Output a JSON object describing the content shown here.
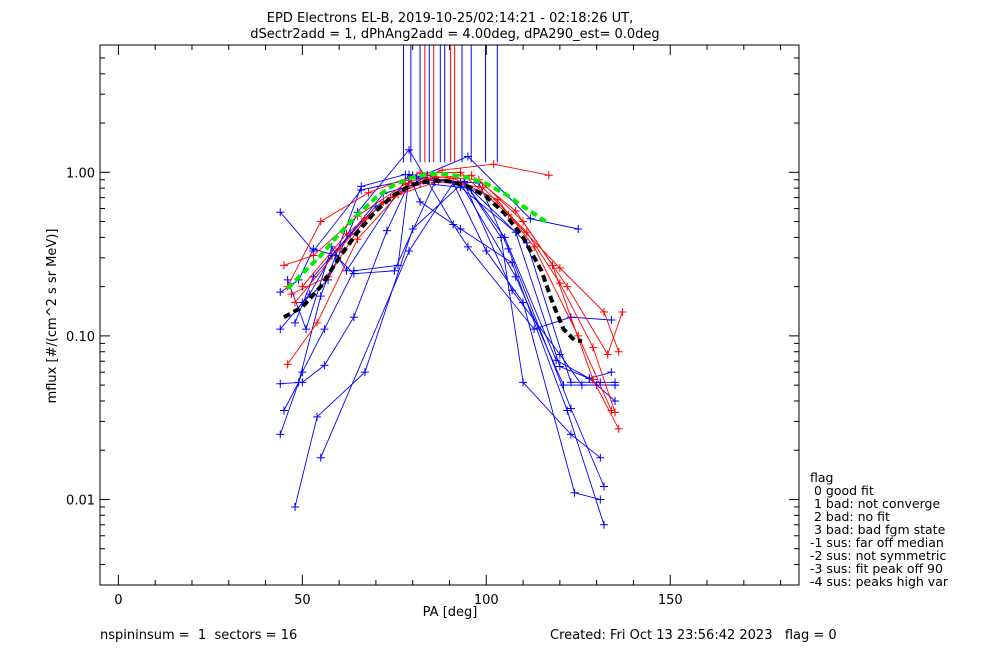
{
  "chart_data": {
    "type": "scatter",
    "title_line1": "EPD Electrons EL-B, 2019-10-25/02:14:21 - 02:18:26 UT,",
    "title_line2": "dSectr2add = 1, dPhAng2add = 4.00deg, dPA290_est=    0.0deg",
    "xlabel": "PA [deg]",
    "ylabel": "mflux [#/(cm^2 s sr MeV)]",
    "xlim": [
      -5,
      185
    ],
    "ylim": [
      0.003,
      6.0
    ],
    "y_scale": "log",
    "x_ticks": [
      0,
      50,
      100,
      150
    ],
    "x_tick_labels": [
      "0",
      "50",
      "100",
      "150"
    ],
    "y_ticks": [
      0.01,
      0.1,
      1.0
    ],
    "y_tick_labels": [
      "0.01",
      "0.10",
      "1.00"
    ],
    "colors": {
      "blue": "#0000ff",
      "red": "#ff0000",
      "green": "#00ee00",
      "black": "#000000"
    },
    "blue_series": [
      [
        [
          44,
          0.57
        ],
        [
          53,
          0.33
        ],
        [
          66,
          0.78
        ],
        [
          81,
          0.92
        ],
        [
          95,
          1.25
        ],
        [
          112,
          0.52
        ],
        [
          125,
          0.45
        ]
      ],
      [
        [
          44,
          0.11
        ],
        [
          52,
          0.18
        ],
        [
          58,
          0.31
        ],
        [
          70,
          0.62
        ],
        [
          84,
          0.96
        ],
        [
          96,
          0.78
        ],
        [
          111,
          0.37
        ],
        [
          123,
          0.052
        ],
        [
          131,
          0.052
        ],
        [
          135,
          0.052
        ]
      ],
      [
        [
          44,
          0.051
        ],
        [
          50,
          0.052
        ],
        [
          56,
          0.066
        ],
        [
          64,
          0.13
        ],
        [
          73,
          0.44
        ],
        [
          80,
          0.96
        ],
        [
          93,
          0.86
        ],
        [
          108,
          0.23
        ],
        [
          121,
          0.05
        ],
        [
          130,
          0.05
        ],
        [
          135,
          0.05
        ]
      ],
      [
        [
          45,
          0.035
        ],
        [
          49,
          0.052
        ],
        [
          55,
          0.175
        ],
        [
          66,
          0.82
        ],
        [
          78,
          0.97
        ],
        [
          94,
          0.86
        ],
        [
          107,
          0.19
        ],
        [
          120,
          0.077
        ],
        [
          126,
          0.05
        ],
        [
          135,
          0.05
        ]
      ],
      [
        [
          44,
          0.025
        ],
        [
          50,
          0.06
        ],
        [
          56,
          0.11
        ],
        [
          64,
          0.25
        ],
        [
          76,
          0.27
        ],
        [
          79,
          0.92
        ],
        [
          98,
          0.86
        ],
        [
          106,
          0.34
        ],
        [
          123,
          0.036
        ],
        [
          132,
          0.012
        ]
      ],
      [
        [
          48,
          0.009
        ],
        [
          54,
          0.032
        ],
        [
          67,
          0.06
        ],
        [
          80,
          0.45
        ],
        [
          94,
          0.88
        ],
        [
          104,
          0.4
        ],
        [
          110,
          0.052
        ],
        [
          123,
          0.025
        ],
        [
          131,
          0.018
        ]
      ],
      [
        [
          55,
          0.018
        ],
        [
          79,
          0.33
        ],
        [
          91,
          0.86
        ],
        [
          100,
          0.33
        ],
        [
          110,
          0.16
        ],
        [
          124,
          0.011
        ],
        [
          131,
          0.01
        ]
      ],
      [
        [
          46,
          0.22
        ],
        [
          51,
          0.11
        ],
        [
          58,
          0.35
        ],
        [
          62,
          0.25
        ],
        [
          79,
          0.97
        ],
        [
          82,
          0.66
        ],
        [
          93,
          0.45
        ],
        [
          107,
          0.28
        ],
        [
          122,
          0.035
        ],
        [
          132,
          0.007
        ]
      ],
      [
        [
          44,
          0.185
        ],
        [
          49,
          0.22
        ],
        [
          53,
          0.34
        ],
        [
          59,
          0.31
        ],
        [
          64,
          0.24
        ],
        [
          75,
          0.25
        ],
        [
          86,
          0.87
        ],
        [
          94,
          0.87
        ],
        [
          105,
          0.4
        ],
        [
          119,
          0.071
        ],
        [
          128,
          0.055
        ],
        [
          134,
          0.06
        ]
      ],
      [
        [
          50,
          0.16
        ],
        [
          57,
          0.22
        ],
        [
          65,
          0.57
        ],
        [
          79,
          1.37
        ],
        [
          91,
          0.48
        ],
        [
          95,
          0.35
        ],
        [
          113,
          0.11
        ],
        [
          123,
          0.13
        ],
        [
          134,
          0.125
        ]
      ],
      [
        [
          48,
          0.12
        ],
        [
          53,
          0.23
        ],
        [
          63,
          0.42
        ],
        [
          72,
          0.74
        ],
        [
          82,
          0.86
        ],
        [
          93,
          0.81
        ],
        [
          108,
          0.43
        ],
        [
          120,
          0.065
        ],
        [
          128,
          0.055
        ],
        [
          135,
          0.04
        ]
      ]
    ],
    "red_series": [
      [
        [
          45,
          0.27
        ],
        [
          53,
          0.31
        ],
        [
          65,
          0.54
        ],
        [
          78,
          0.85
        ],
        [
          88,
          1.03
        ],
        [
          102,
          1.12
        ],
        [
          117,
          0.96
        ]
      ],
      [
        [
          46,
          0.2
        ],
        [
          55,
          0.5
        ],
        [
          68,
          0.75
        ],
        [
          82,
          0.99
        ],
        [
          93,
          1.0
        ],
        [
          106,
          0.55
        ],
        [
          120,
          0.26
        ],
        [
          132,
          0.14
        ],
        [
          136,
          0.08
        ]
      ],
      [
        [
          46,
          0.067
        ],
        [
          54,
          0.12
        ],
        [
          65,
          0.39
        ],
        [
          76,
          0.73
        ],
        [
          87,
          0.88
        ],
        [
          99,
          0.81
        ],
        [
          111,
          0.43
        ],
        [
          120,
          0.21
        ],
        [
          129,
          0.085
        ],
        [
          135,
          0.034
        ]
      ],
      [
        [
          47,
          0.18
        ],
        [
          57,
          0.23
        ],
        [
          67,
          0.52
        ],
        [
          79,
          0.86
        ],
        [
          91,
          0.92
        ],
        [
          103,
          0.68
        ],
        [
          113,
          0.35
        ],
        [
          125,
          0.1
        ],
        [
          134,
          0.035
        ]
      ],
      [
        [
          48,
          0.16
        ],
        [
          60,
          0.34
        ],
        [
          72,
          0.66
        ],
        [
          84,
          0.92
        ],
        [
          96,
          0.96
        ],
        [
          108,
          0.58
        ],
        [
          118,
          0.27
        ],
        [
          129,
          0.054
        ],
        [
          136,
          0.027
        ]
      ],
      [
        [
          50,
          0.2
        ],
        [
          62,
          0.42
        ],
        [
          74,
          0.7
        ],
        [
          86,
          0.94
        ],
        [
          98,
          0.9
        ],
        [
          110,
          0.5
        ],
        [
          122,
          0.2
        ],
        [
          133,
          0.077
        ],
        [
          137,
          0.14
        ]
      ]
    ],
    "green_fit": [
      [
        46,
        0.195
      ],
      [
        50,
        0.24
      ],
      [
        55,
        0.31
      ],
      [
        60,
        0.42
      ],
      [
        65,
        0.55
      ],
      [
        70,
        0.7
      ],
      [
        75,
        0.84
      ],
      [
        80,
        0.93
      ],
      [
        85,
        0.98
      ],
      [
        90,
        0.97
      ],
      [
        95,
        0.93
      ],
      [
        100,
        0.85
      ],
      [
        105,
        0.74
      ],
      [
        110,
        0.62
      ],
      [
        115,
        0.52
      ],
      [
        117,
        0.49
      ]
    ],
    "black_fit": [
      [
        45,
        0.13
      ],
      [
        50,
        0.15
      ],
      [
        55,
        0.2
      ],
      [
        60,
        0.3
      ],
      [
        65,
        0.43
      ],
      [
        70,
        0.58
      ],
      [
        75,
        0.73
      ],
      [
        80,
        0.84
      ],
      [
        85,
        0.89
      ],
      [
        90,
        0.88
      ],
      [
        95,
        0.82
      ],
      [
        100,
        0.71
      ],
      [
        105,
        0.56
      ],
      [
        110,
        0.4
      ],
      [
        115,
        0.25
      ],
      [
        118,
        0.16
      ],
      [
        121,
        0.11
      ],
      [
        124,
        0.094
      ],
      [
        126,
        0.093
      ]
    ],
    "flag_lines": [
      {
        "x": 77.5,
        "color": "blue"
      },
      {
        "x": 79.5,
        "color": "blue"
      },
      {
        "x": 82.0,
        "color": "blue"
      },
      {
        "x": 83.3,
        "color": "red"
      },
      {
        "x": 84.5,
        "color": "blue"
      },
      {
        "x": 85.7,
        "color": "red"
      },
      {
        "x": 87.5,
        "color": "blue"
      },
      {
        "x": 88.7,
        "color": "blue"
      },
      {
        "x": 90.3,
        "color": "red"
      },
      {
        "x": 91.4,
        "color": "red"
      },
      {
        "x": 93.4,
        "color": "blue"
      },
      {
        "x": 95.9,
        "color": "blue"
      },
      {
        "x": 99.8,
        "color": "blue"
      },
      {
        "x": 103.0,
        "color": "blue"
      }
    ],
    "flag_lines_ymin": 1.15
  },
  "legend": {
    "lines": [
      "flag",
      " 0 good fit",
      " 1 bad: not converge",
      " 2 bad: no fit",
      " 3 bad: bad fgm state",
      "-1 sus: far off median",
      "-2 sus: not symmetric",
      "-3 sus: fit peak off 90",
      "-4 sus: peaks high var"
    ]
  },
  "footer": {
    "left": "nspininsum =  1  sectors = 16",
    "right": "Created: Fri Oct 13 23:56:42 2023   flag = 0"
  }
}
